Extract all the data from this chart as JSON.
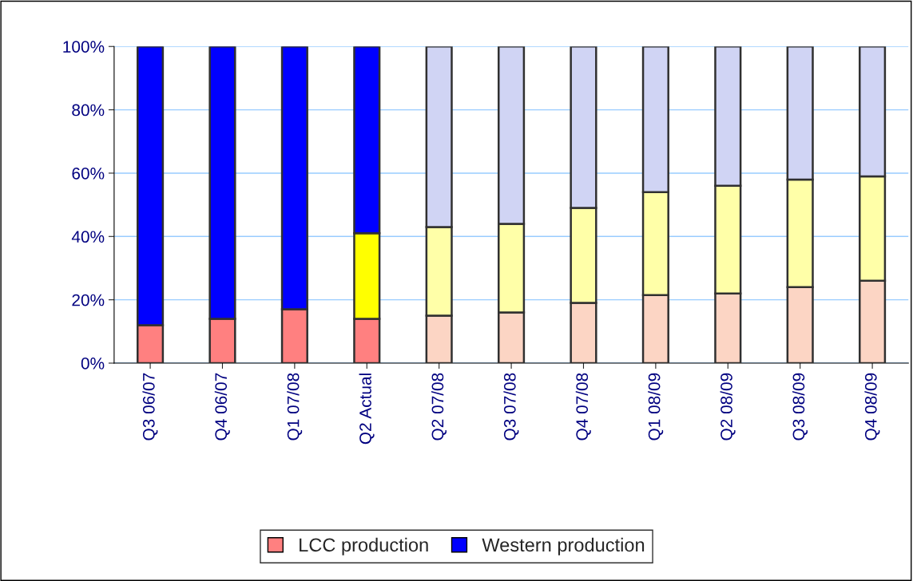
{
  "chart_data": {
    "type": "bar",
    "stacked": true,
    "categories": [
      "Q3 06/07",
      "Q4 06/07",
      "Q1 07/08",
      "Q2 Actual",
      "Q2 07/08",
      "Q3 07/08",
      "Q4 07/08",
      "Q1 08/09",
      "Q2 08/09",
      "Q3 08/09",
      "Q4 08/09"
    ],
    "series": [
      {
        "name": "LCC production",
        "color": "#ff8080",
        "colors": [
          "#ff8080",
          "#ff8080",
          "#ff8080",
          "#ff8080",
          "#fcd5c4",
          "#fcd5c4",
          "#fcd5c4",
          "#fcd5c4",
          "#fcd5c4",
          "#fcd5c4",
          "#fcd5c4"
        ],
        "values": [
          12,
          14,
          17,
          14,
          15,
          16,
          19,
          21.5,
          22,
          24,
          26
        ]
      },
      {
        "colors": [
          "#ffff00",
          "#ffff00",
          "#ffff00",
          "#ffff00",
          "#ffffa8",
          "#ffffa8",
          "#ffffa8",
          "#ffffa8",
          "#ffffa8",
          "#ffffa8",
          "#ffffa8"
        ],
        "values": [
          0,
          0,
          0,
          27,
          28,
          28,
          30,
          32.5,
          34,
          34,
          33
        ]
      },
      {
        "name": "Western production",
        "color": "#0000ff",
        "colors": [
          "#0000ff",
          "#0000ff",
          "#0000ff",
          "#0000ff",
          "#d0d4f4",
          "#d0d4f4",
          "#d0d4f4",
          "#d0d4f4",
          "#d0d4f4",
          "#d0d4f4",
          "#d0d4f4"
        ],
        "values": [
          88,
          86,
          83,
          59,
          57,
          56,
          51,
          46,
          44,
          42,
          41
        ]
      }
    ],
    "ylim": [
      0,
      100
    ],
    "yticks": [
      {
        "value": 0,
        "label": "0%"
      },
      {
        "value": 20,
        "label": "20%"
      },
      {
        "value": 40,
        "label": "40%"
      },
      {
        "value": 60,
        "label": "60%"
      },
      {
        "value": 80,
        "label": "80%"
      },
      {
        "value": 100,
        "label": "100%"
      }
    ],
    "grid": "y",
    "legend": "bottom"
  }
}
